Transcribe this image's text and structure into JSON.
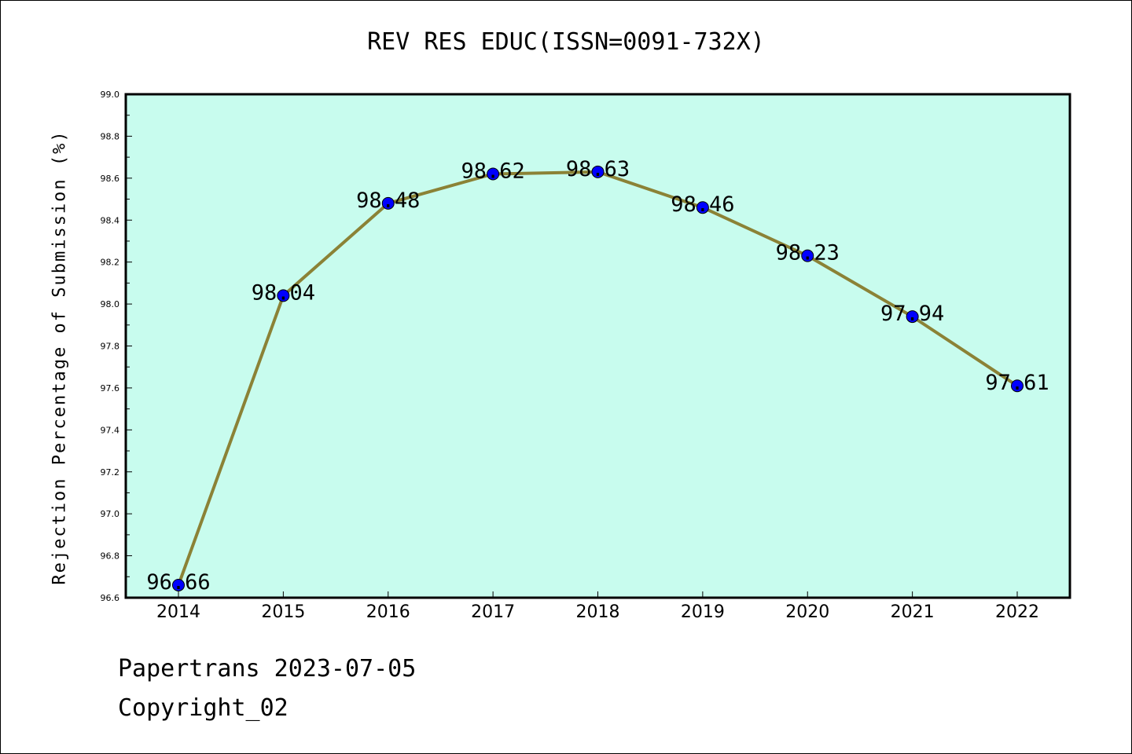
{
  "chart_data": {
    "type": "line",
    "title": "REV RES EDUC(ISSN=0091-732X)",
    "xlabel": "",
    "ylabel": "Rejection Percentage of Submission (%)",
    "categories": [
      "2014",
      "2015",
      "2016",
      "2017",
      "2018",
      "2019",
      "2020",
      "2021",
      "2022"
    ],
    "series": [
      {
        "values": [
          96.66,
          98.04,
          98.48,
          98.62,
          98.63,
          98.46,
          98.23,
          97.94,
          97.61
        ]
      }
    ],
    "data_labels": [
      "96.66",
      "98.04",
      "98.48",
      "98.62",
      "98.63",
      "98.46",
      "98.23",
      "97.94",
      "97.61"
    ],
    "ylim": [
      96.6,
      99.0
    ],
    "yticks": [
      "96.6",
      "96.8",
      "97.0",
      "97.2",
      "97.4",
      "97.6",
      "97.8",
      "98.0",
      "98.2",
      "98.4",
      "98.6",
      "98.8",
      "99.0"
    ],
    "grid": false,
    "colors": {
      "plot_background": "#c8fcee",
      "line": "#8b8236",
      "marker": "#0000ff"
    }
  },
  "footer": {
    "line1": "Papertrans 2023-07-05",
    "line2": "Copyright_02"
  }
}
